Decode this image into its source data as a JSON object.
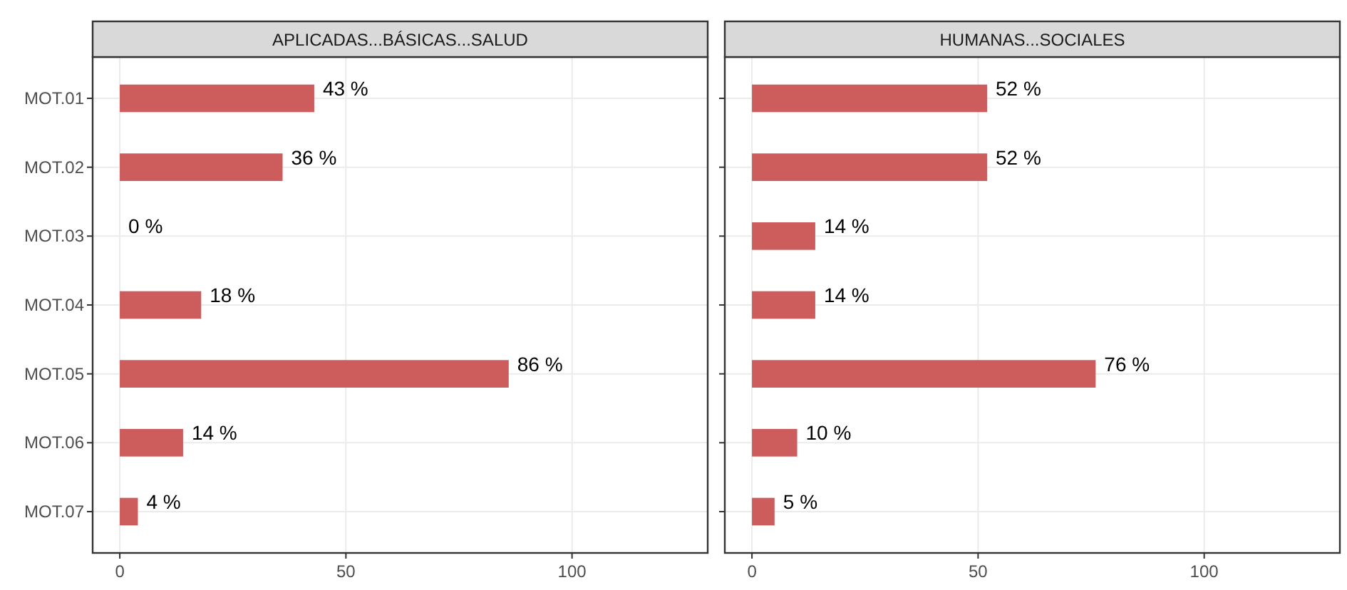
{
  "chart_data": [
    {
      "type": "bar",
      "orientation": "horizontal",
      "title": "APLICADAS...BÁSICAS...SALUD",
      "categories": [
        "MOT.01",
        "MOT.02",
        "MOT.03",
        "MOT.04",
        "MOT.05",
        "MOT.06",
        "MOT.07"
      ],
      "values": [
        43,
        36,
        0,
        18,
        86,
        14,
        4
      ],
      "value_labels": [
        "43 %",
        "36 %",
        "0 %",
        "18 %",
        "86 %",
        "14 %",
        "4 %"
      ],
      "color": "#cd5c5c",
      "xlim": [
        -6,
        130
      ],
      "xticks": [
        0,
        50,
        100
      ],
      "grid": true
    },
    {
      "type": "bar",
      "orientation": "horizontal",
      "title": "HUMANAS...SOCIALES",
      "categories": [
        null,
        null,
        null,
        null,
        null,
        null,
        null
      ],
      "values": [
        52,
        52,
        14,
        14,
        76,
        10,
        5
      ],
      "value_labels": [
        "52 %",
        "52 %",
        "14 %",
        "14 %",
        "76 %",
        "10 %",
        "5 %"
      ],
      "color": "#cd5c5c",
      "xlim": [
        -6,
        130
      ],
      "xticks": [
        0,
        50,
        100
      ],
      "grid": true
    }
  ]
}
